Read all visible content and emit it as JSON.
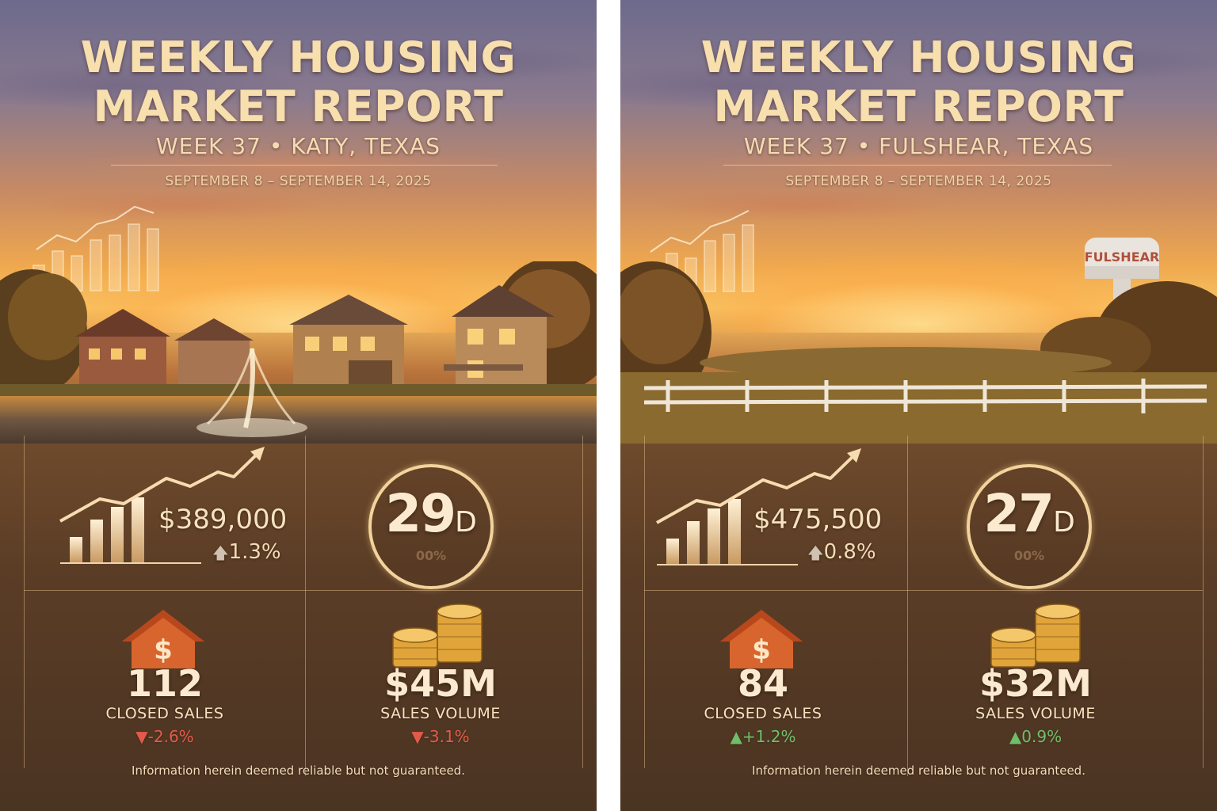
{
  "reports": [
    {
      "title_line1": "WEEKLY HOUSING",
      "title_line2": "MARKET REPORT",
      "subtitle": "WEEK 37 • KATY, TEXAS",
      "date_range": "SEPTEMBER 8 – SEPTEMBER 14, 2025",
      "median_price": "$389,000",
      "median_price_change_arrow": "🡅",
      "median_price_change": "1.3%",
      "days_on_market_number": "29",
      "days_on_market_unit": "D",
      "days_on_market_faint": "00%",
      "closed_sales": "112",
      "closed_sales_label": "CLOSED SALES",
      "closed_sales_change": "▼-2.6%",
      "sales_volume": "$45M",
      "sales_volume_label": "SALES VOLUME",
      "sales_volume_change": "▼-3.1%",
      "disclaimer": "Information herein deemed reliable but not guaranteed."
    },
    {
      "title_line1": "WEEKLY HOUSING",
      "title_line2": "MARKET REPORT",
      "subtitle": "WEEK 37 • FULSHEAR, TEXAS",
      "date_range": "SEPTEMBER 8 – SEPTEMBER 14, 2025",
      "water_tower_text": "FULSHEAR",
      "median_price": "$475,500",
      "median_price_change_arrow": "🡅",
      "median_price_change": "0.8%",
      "days_on_market_number": "27",
      "days_on_market_unit": "D",
      "days_on_market_faint": "00%",
      "closed_sales": "84",
      "closed_sales_label": "CLOSED SALES",
      "closed_sales_change": "▲+1.2%",
      "sales_volume": "$32M",
      "sales_volume_label": "SALES VOLUME",
      "sales_volume_change": "▲0.9%",
      "disclaimer": "Information herein deemed reliable but not guaranteed."
    }
  ],
  "colors": {
    "title": "#f7dfae",
    "negative": "#e45a4a",
    "positive": "#6fbf6a",
    "house_icon": "#d9652e",
    "coins": "#e0a43a"
  },
  "icons": [
    "bar-chart-trend-icon",
    "house-dollar-icon",
    "coin-stack-icon",
    "arrow-up-icon",
    "triangle-down-icon",
    "triangle-up-icon"
  ]
}
